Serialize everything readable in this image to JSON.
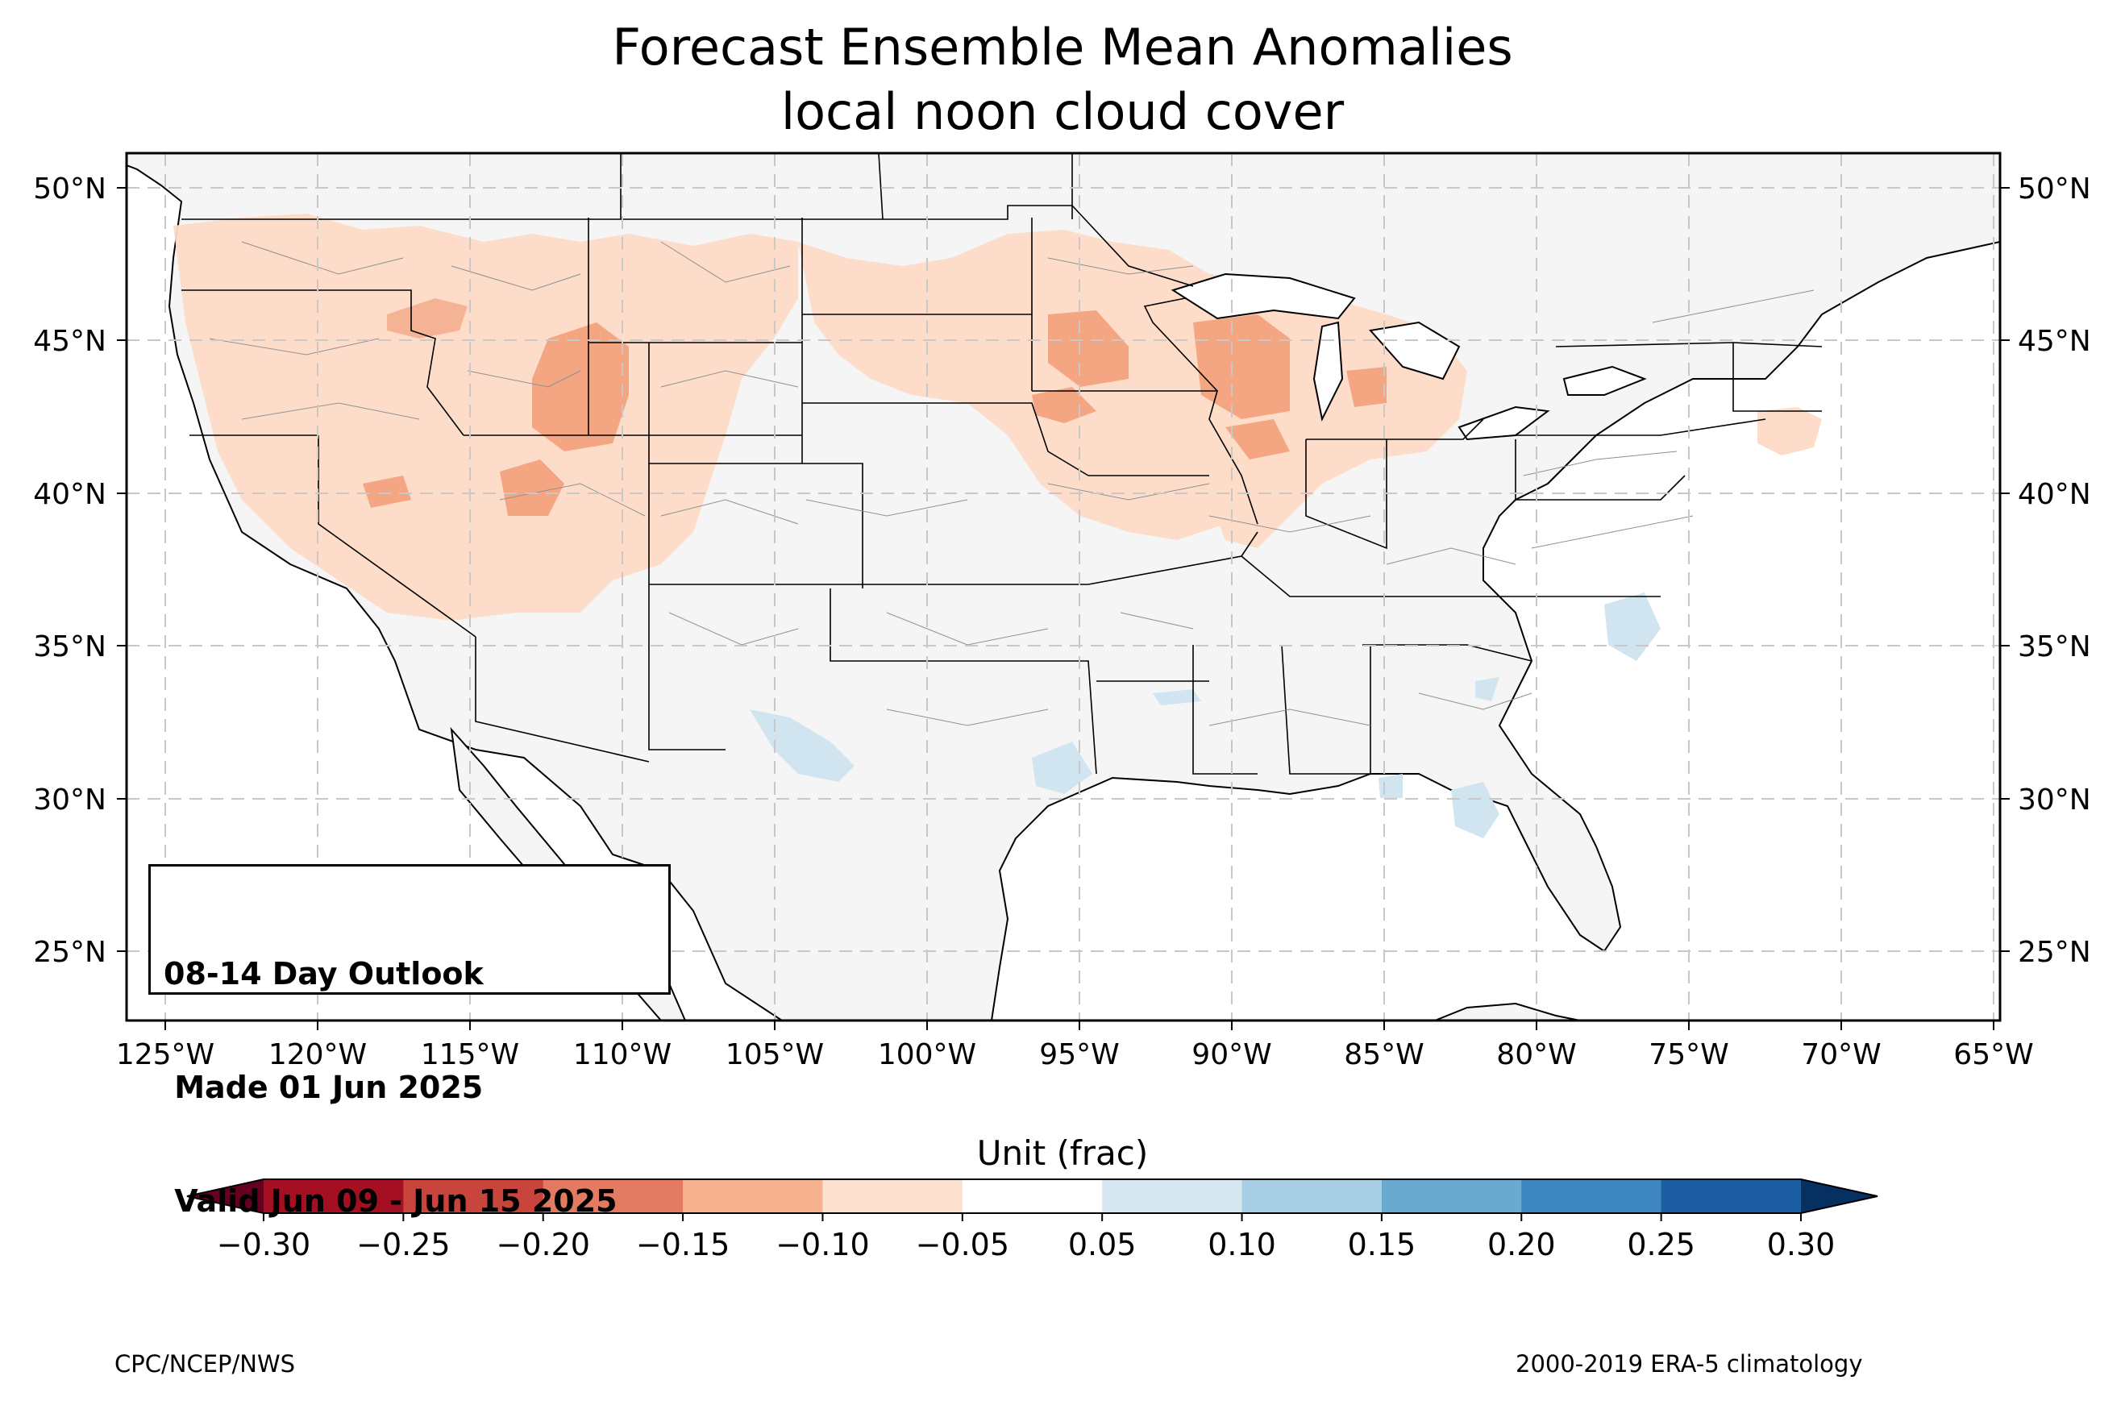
{
  "title": {
    "line1": "Forecast Ensemble Mean Anomalies",
    "line2": "local noon cloud cover"
  },
  "map": {
    "lat_labels": [
      "50°N",
      "45°N",
      "40°N",
      "35°N",
      "30°N",
      "25°N"
    ],
    "lon_labels": [
      "125°W",
      "120°W",
      "115°W",
      "110°W",
      "105°W",
      "100°W",
      "95°W",
      "90°W",
      "85°W",
      "80°W",
      "75°W",
      "70°W",
      "65°W"
    ],
    "land_color": "#f5f5f5",
    "grid": true,
    "anomaly_regions": [
      {
        "area": "Pacific Northwest and Great Basin",
        "category": "-0.10 to -0.05",
        "color": "#fddbc7"
      },
      {
        "area": "Idaho, Montana and Wyoming",
        "category": "-0.15 to -0.10",
        "color": "#f4a582"
      },
      {
        "area": "Northern Plains",
        "category": "-0.10 to -0.05",
        "color": "#fddbc7"
      },
      {
        "area": "Upper Midwest and Great Lakes",
        "category": "-0.15 to -0.10",
        "color": "#f4a582"
      },
      {
        "area": "Southern New England",
        "category": "-0.10 to -0.05",
        "color": "#fddbc7"
      },
      {
        "area": "Texas and New Mexico",
        "category": "0.05 to 0.10",
        "color": "#d1e5f0"
      },
      {
        "area": "North Carolina coast",
        "category": "0.05 to 0.10",
        "color": "#d1e5f0"
      },
      {
        "area": "Florida",
        "category": "0.05 to 0.10",
        "color": "#d1e5f0"
      }
    ]
  },
  "info_box": {
    "line1": "08-14 Day Outlook",
    "line2": " Made 01 Jun 2025",
    "line3": " Valid Jun 09 - Jun 15 2025"
  },
  "colorbar": {
    "label": "Unit (frac)",
    "ticks": [
      "−0.30",
      "−0.25",
      "−0.20",
      "−0.15",
      "−0.10",
      "−0.05",
      "0.05",
      "0.10",
      "0.15",
      "0.20",
      "0.25",
      "0.30"
    ],
    "colors": [
      "#a50f22",
      "#c9443d",
      "#e27b62",
      "#f5b08e",
      "#fde1d0",
      "#ffffff",
      "#d7e8f2",
      "#a8cfe3",
      "#6aa9d0",
      "#3e86bf",
      "#1c5ea1"
    ],
    "under_color": "#67001f",
    "over_color": "#053061"
  },
  "footer": {
    "left": "CPC/NCEP/NWS",
    "right": "2000-2019 ERA-5 climatology"
  }
}
